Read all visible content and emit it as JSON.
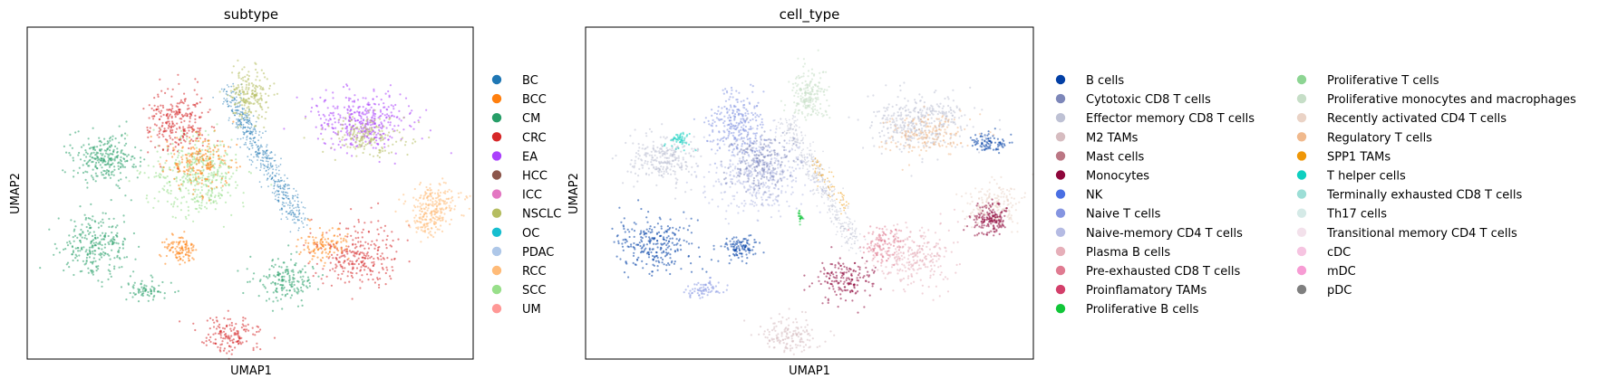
{
  "chart_data": [
    {
      "type": "scatter",
      "title": "subtype",
      "xlabel": "UMAP1",
      "ylabel": "UMAP2",
      "grid": false,
      "ticks": false,
      "legend_placement": "right",
      "series": [
        {
          "name": "BC",
          "color": "#1f77b4"
        },
        {
          "name": "BCC",
          "color": "#ff7f0e"
        },
        {
          "name": "CM",
          "color": "#279e68"
        },
        {
          "name": "CRC",
          "color": "#d62728"
        },
        {
          "name": "EA",
          "color": "#aa40fc"
        },
        {
          "name": "HCC",
          "color": "#8c564b"
        },
        {
          "name": "ICC",
          "color": "#e377c2"
        },
        {
          "name": "NSCLC",
          "color": "#b5bd61"
        },
        {
          "name": "OC",
          "color": "#17becf"
        },
        {
          "name": "PDAC",
          "color": "#aec7e8"
        },
        {
          "name": "RCC",
          "color": "#ffbb78"
        },
        {
          "name": "SCC",
          "color": "#98df8a"
        },
        {
          "name": "UM",
          "color": "#ff9896"
        }
      ]
    },
    {
      "type": "scatter",
      "title": "cell_type",
      "xlabel": "UMAP1",
      "ylabel": "UMAP2",
      "grid": false,
      "ticks": false,
      "legend_placement": "right",
      "series": [
        {
          "name": "B cells",
          "color": "#023fa5"
        },
        {
          "name": "Cytotoxic CD8 T cells",
          "color": "#7d87b9"
        },
        {
          "name": "Effector memory CD8 T cells",
          "color": "#bec1d4"
        },
        {
          "name": "M2 TAMs",
          "color": "#d6bcc0"
        },
        {
          "name": "Mast cells",
          "color": "#bb7784"
        },
        {
          "name": "Monocytes",
          "color": "#8e063b"
        },
        {
          "name": "NK",
          "color": "#4a6fe3"
        },
        {
          "name": "Naive T cells",
          "color": "#8595e1"
        },
        {
          "name": "Naive-memory CD4 T cells",
          "color": "#b5bbe3"
        },
        {
          "name": "Plasma B cells",
          "color": "#e6afb9"
        },
        {
          "name": "Pre-exhausted CD8 T cells",
          "color": "#e07b91"
        },
        {
          "name": "Proinflamatory TAMs",
          "color": "#d33f6a"
        },
        {
          "name": "Proliferative B cells",
          "color": "#11c638"
        },
        {
          "name": "Proliferative T cells",
          "color": "#8dd593"
        },
        {
          "name": "Proliferative monocytes and macrophages",
          "color": "#c6dec7"
        },
        {
          "name": "Recently activated CD4 T cells",
          "color": "#ead3c6"
        },
        {
          "name": "Regulatory T cells",
          "color": "#f0b98d"
        },
        {
          "name": "SPP1 TAMs",
          "color": "#ef9708"
        },
        {
          "name": "T helper cells",
          "color": "#0fcfc0"
        },
        {
          "name": "Terminally exhausted CD8 T cells",
          "color": "#9cded6"
        },
        {
          "name": "Th17 cells",
          "color": "#d5eae7"
        },
        {
          "name": "Transitional memory CD4 T cells",
          "color": "#f3e1eb"
        },
        {
          "name": "cDC",
          "color": "#f6c4e1"
        },
        {
          "name": "mDC",
          "color": "#f79cd4"
        },
        {
          "name": "pDC",
          "color": "#7f7f7f"
        }
      ]
    }
  ]
}
